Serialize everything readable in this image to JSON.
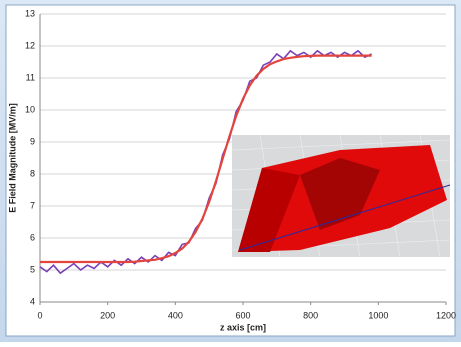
{
  "chart_data": {
    "type": "line",
    "xlabel": "z axis [cm]",
    "ylabel": "E Field Magnitude [MV/m]",
    "x": [
      0,
      20,
      40,
      60,
      80,
      100,
      120,
      140,
      160,
      180,
      200,
      220,
      240,
      260,
      280,
      300,
      320,
      340,
      360,
      380,
      400,
      420,
      440,
      460,
      480,
      500,
      520,
      540,
      560,
      580,
      600,
      620,
      640,
      660,
      680,
      700,
      720,
      740,
      760,
      780,
      800,
      820,
      840,
      860,
      880,
      900,
      920,
      940,
      960,
      980
    ],
    "series": [
      {
        "color": "#7b3fb5",
        "values": [
          5.1,
          4.95,
          5.15,
          4.9,
          5.05,
          5.2,
          5.0,
          5.15,
          5.05,
          5.25,
          5.1,
          5.3,
          5.15,
          5.35,
          5.2,
          5.4,
          5.25,
          5.45,
          5.3,
          5.55,
          5.45,
          5.8,
          5.85,
          6.3,
          6.55,
          7.25,
          7.7,
          8.6,
          9.1,
          9.95,
          10.3,
          10.9,
          11.0,
          11.4,
          11.5,
          11.75,
          11.6,
          11.85,
          11.7,
          11.8,
          11.65,
          11.85,
          11.7,
          11.8,
          11.65,
          11.8,
          11.7,
          11.85,
          11.65,
          11.75
        ]
      },
      {
        "color": "#e2453d",
        "values": [
          5.25,
          5.25,
          5.25,
          5.25,
          5.25,
          5.25,
          5.25,
          5.25,
          5.25,
          5.25,
          5.25,
          5.25,
          5.25,
          5.25,
          5.26,
          5.28,
          5.3,
          5.32,
          5.37,
          5.43,
          5.53,
          5.67,
          5.88,
          6.19,
          6.6,
          7.13,
          7.77,
          8.48,
          9.18,
          9.82,
          10.35,
          10.77,
          11.07,
          11.28,
          11.43,
          11.52,
          11.59,
          11.63,
          11.66,
          11.68,
          11.69,
          11.7,
          11.7,
          11.7,
          11.7,
          11.7,
          11.7,
          11.7,
          11.7,
          11.7
        ]
      }
    ],
    "xlim": [
      0,
      1200
    ],
    "xticks": [
      0,
      200,
      400,
      600,
      800,
      1000,
      1200
    ],
    "ylim": [
      4,
      13
    ],
    "yticks": [
      4,
      5,
      6,
      7,
      8,
      9,
      10,
      11,
      12,
      13
    ],
    "grid": true
  }
}
